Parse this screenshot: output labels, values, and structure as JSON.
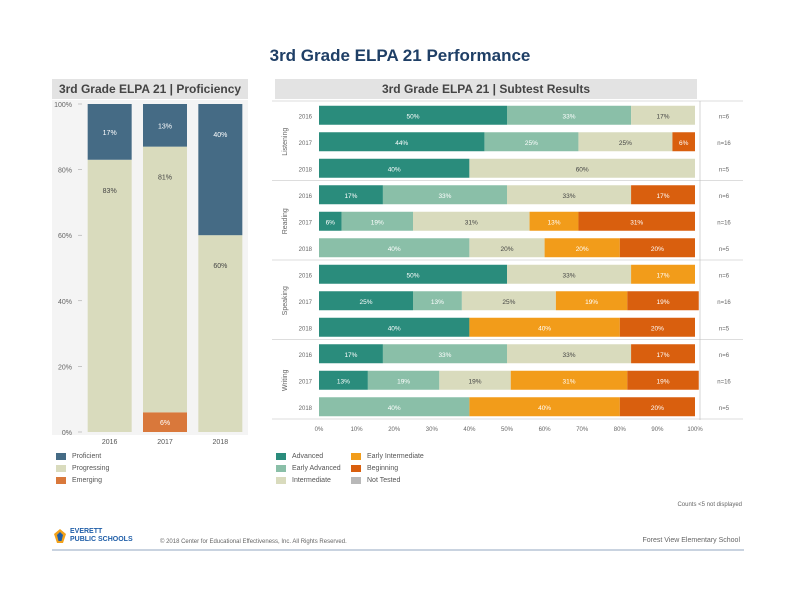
{
  "title": "3rd Grade ELPA 21 Performance",
  "left_panel_title": "3rd Grade ELPA 21 | Proficiency",
  "right_panel_title": "3rd Grade ELPA 21 | Subtest Results",
  "colors": {
    "Proficient": "#456b85",
    "Progressing": "#d9dbbd",
    "Emerging": "#d9783b",
    "Advanced": "#2a8c7c",
    "Early Advanced": "#8abfa8",
    "Intermediate": "#d9dbbd",
    "Early Intermediate": "#f29c1a",
    "Beginning": "#d95f0e",
    "Not Tested": "#b8b8b8"
  },
  "chart_data": [
    {
      "type": "bar",
      "stacked": true,
      "title": "3rd Grade ELPA 21 | Proficiency",
      "categories": [
        "2016",
        "2017",
        "2018"
      ],
      "ylim": [
        0,
        100
      ],
      "yticks": [
        "0%",
        "20%",
        "40%",
        "60%",
        "80%",
        "100%"
      ],
      "series": [
        {
          "name": "Emerging",
          "values": [
            0,
            6,
            0
          ],
          "labels": [
            "",
            "6%",
            ""
          ]
        },
        {
          "name": "Progressing",
          "values": [
            83,
            81,
            60
          ],
          "labels": [
            "83%",
            "81%",
            "60%"
          ]
        },
        {
          "name": "Proficient",
          "values": [
            17,
            13,
            40
          ],
          "labels": [
            "17%",
            "13%",
            "40%"
          ]
        }
      ],
      "legend": [
        "Proficient",
        "Progressing",
        "Emerging"
      ]
    },
    {
      "type": "bar",
      "orientation": "horizontal",
      "stacked": true,
      "title": "3rd Grade ELPA 21 | Subtest Results",
      "xticks": [
        "0%",
        "10%",
        "20%",
        "30%",
        "40%",
        "50%",
        "60%",
        "70%",
        "80%",
        "90%",
        "100%"
      ],
      "xlim": [
        0,
        100
      ],
      "legend": [
        "Advanced",
        "Early Advanced",
        "Intermediate",
        "Early Intermediate",
        "Beginning",
        "Not Tested"
      ],
      "groups": [
        {
          "name": "Listening",
          "rows": [
            {
              "year": "2016",
              "n": "n=6",
              "segments": [
                [
                  "Advanced",
                  50,
                  "50%"
                ],
                [
                  "Early Advanced",
                  33,
                  "33%"
                ],
                [
                  "Intermediate",
                  17,
                  "17%"
                ]
              ]
            },
            {
              "year": "2017",
              "n": "n=16",
              "segments": [
                [
                  "Advanced",
                  44,
                  "44%"
                ],
                [
                  "Early Advanced",
                  25,
                  "25%"
                ],
                [
                  "Intermediate",
                  25,
                  "25%"
                ],
                [
                  "Beginning",
                  6,
                  "6%"
                ]
              ]
            },
            {
              "year": "2018",
              "n": "n=5",
              "segments": [
                [
                  "Advanced",
                  40,
                  "40%"
                ],
                [
                  "Intermediate",
                  60,
                  "60%"
                ]
              ]
            }
          ]
        },
        {
          "name": "Reading",
          "rows": [
            {
              "year": "2016",
              "n": "n=6",
              "segments": [
                [
                  "Advanced",
                  17,
                  "17%"
                ],
                [
                  "Early Advanced",
                  33,
                  "33%"
                ],
                [
                  "Intermediate",
                  33,
                  "33%"
                ],
                [
                  "Beginning",
                  17,
                  "17%"
                ]
              ]
            },
            {
              "year": "2017",
              "n": "n=16",
              "segments": [
                [
                  "Advanced",
                  6,
                  "6%"
                ],
                [
                  "Early Advanced",
                  19,
                  "19%"
                ],
                [
                  "Intermediate",
                  31,
                  "31%"
                ],
                [
                  "Early Intermediate",
                  13,
                  "13%"
                ],
                [
                  "Beginning",
                  31,
                  "31%"
                ]
              ]
            },
            {
              "year": "2018",
              "n": "n=5",
              "segments": [
                [
                  "Early Advanced",
                  40,
                  "40%"
                ],
                [
                  "Intermediate",
                  20,
                  "20%"
                ],
                [
                  "Early Intermediate",
                  20,
                  "20%"
                ],
                [
                  "Beginning",
                  20,
                  "20%"
                ]
              ]
            }
          ]
        },
        {
          "name": "Speaking",
          "rows": [
            {
              "year": "2016",
              "n": "n=6",
              "segments": [
                [
                  "Advanced",
                  50,
                  "50%"
                ],
                [
                  "Intermediate",
                  33,
                  "33%"
                ],
                [
                  "Early Intermediate",
                  17,
                  "17%"
                ]
              ]
            },
            {
              "year": "2017",
              "n": "n=16",
              "segments": [
                [
                  "Advanced",
                  25,
                  "25%"
                ],
                [
                  "Early Advanced",
                  13,
                  "13%"
                ],
                [
                  "Intermediate",
                  25,
                  "25%"
                ],
                [
                  "Early Intermediate",
                  19,
                  "19%"
                ],
                [
                  "Beginning",
                  19,
                  "19%"
                ]
              ]
            },
            {
              "year": "2018",
              "n": "n=5",
              "segments": [
                [
                  "Advanced",
                  40,
                  "40%"
                ],
                [
                  "Early Intermediate",
                  40,
                  "40%"
                ],
                [
                  "Beginning",
                  20,
                  "20%"
                ]
              ]
            }
          ]
        },
        {
          "name": "Writing",
          "rows": [
            {
              "year": "2016",
              "n": "n=6",
              "segments": [
                [
                  "Advanced",
                  17,
                  "17%"
                ],
                [
                  "Early Advanced",
                  33,
                  "33%"
                ],
                [
                  "Intermediate",
                  33,
                  "33%"
                ],
                [
                  "Beginning",
                  17,
                  "17%"
                ]
              ]
            },
            {
              "year": "2017",
              "n": "n=16",
              "segments": [
                [
                  "Advanced",
                  13,
                  "13%"
                ],
                [
                  "Early Advanced",
                  19,
                  "19%"
                ],
                [
                  "Intermediate",
                  19,
                  "19%"
                ],
                [
                  "Early Intermediate",
                  31,
                  "31%"
                ],
                [
                  "Beginning",
                  19,
                  "19%"
                ]
              ]
            },
            {
              "year": "2018",
              "n": "n=5",
              "segments": [
                [
                  "Early Advanced",
                  40,
                  "40%"
                ],
                [
                  "Early Intermediate",
                  40,
                  "40%"
                ],
                [
                  "Beginning",
                  20,
                  "20%"
                ]
              ]
            }
          ]
        }
      ]
    }
  ],
  "note": "Counts <5 not displayed",
  "footer": {
    "logo_line1": "EVERETT",
    "logo_line2": "PUBLIC SCHOOLS",
    "copyright": "© 2018 Center for Educational Effectiveness, Inc. All Rights Reserved.",
    "school": "Forest View Elementary School"
  }
}
